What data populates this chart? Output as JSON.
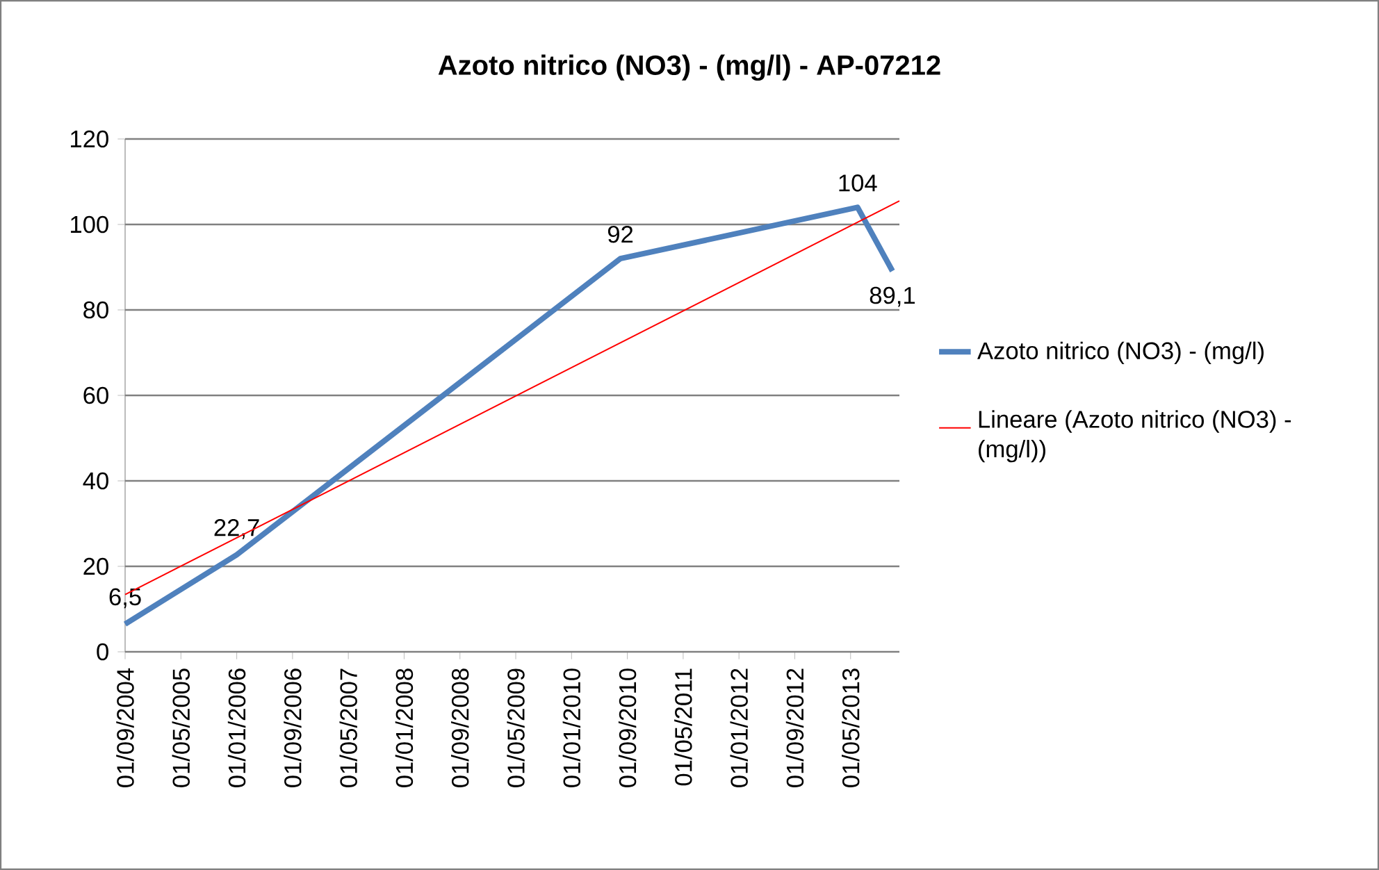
{
  "chart_data": {
    "type": "line",
    "title": "Azoto nitrico (NO3) - (mg/l) - AP-07212",
    "x": [
      "2004-09-01",
      "2006-01-01",
      "2010-08-01",
      "2013-06-01",
      "2013-11-01"
    ],
    "series": [
      {
        "name": "Azoto nitrico (NO3) - (mg/l)",
        "color": "#4f81bd",
        "values": [
          6.5,
          22.7,
          92,
          104,
          89.1
        ],
        "value_labels": [
          "6,5",
          "22,7",
          "92",
          "104",
          "89,1"
        ]
      },
      {
        "name": "Lineare (Azoto nitrico (NO3) - (mg/l))",
        "color": "#ff0000",
        "type": "line",
        "x": [
          "2004-09-01",
          "2013-12-01"
        ],
        "values": [
          13.4,
          105.5
        ]
      }
    ],
    "xlim": [
      "2004-09-01",
      "2013-12-01"
    ],
    "xticks": [
      {
        "value": "2004-09-01",
        "label": "01/09/2004"
      },
      {
        "value": "2005-05-01",
        "label": "01/05/2005"
      },
      {
        "value": "2006-01-01",
        "label": "01/01/2006"
      },
      {
        "value": "2006-09-01",
        "label": "01/09/2006"
      },
      {
        "value": "2007-05-01",
        "label": "01/05/2007"
      },
      {
        "value": "2008-01-01",
        "label": "01/01/2008"
      },
      {
        "value": "2008-09-01",
        "label": "01/09/2008"
      },
      {
        "value": "2009-05-01",
        "label": "01/05/2009"
      },
      {
        "value": "2010-01-01",
        "label": "01/01/2010"
      },
      {
        "value": "2010-09-01",
        "label": "01/09/2010"
      },
      {
        "value": "2011-05-01",
        "label": "01/05/2011"
      },
      {
        "value": "2012-01-01",
        "label": "01/01/2012"
      },
      {
        "value": "2012-09-01",
        "label": "01/09/2012"
      },
      {
        "value": "2013-05-01",
        "label": "01/05/2013"
      }
    ],
    "ylim": [
      0,
      120
    ],
    "yticks": [
      0,
      20,
      40,
      60,
      80,
      100,
      120
    ],
    "grid": "y",
    "legend": "right",
    "marker": "none",
    "line_style": "solid"
  }
}
